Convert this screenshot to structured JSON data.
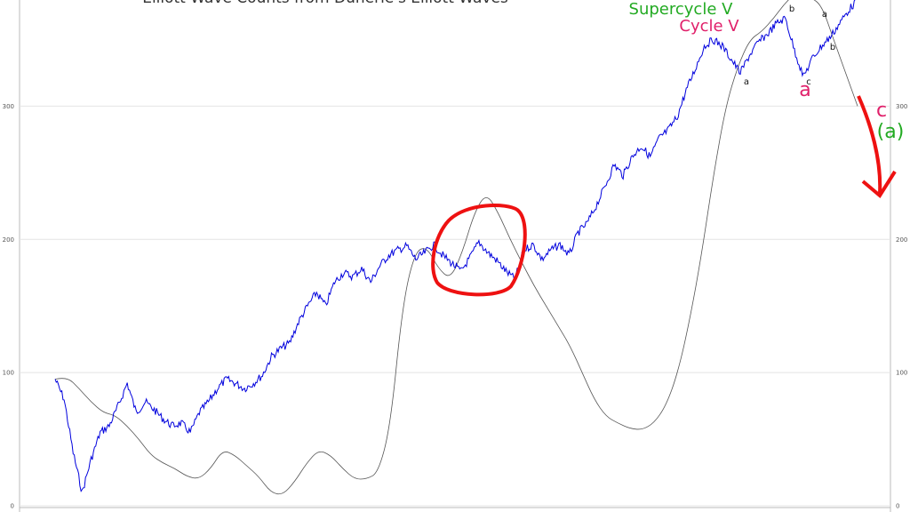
{
  "chart_data": {
    "type": "line",
    "title": "Elliott Wave Counts from Dunerie's Elliott Waves",
    "ylim": [
      0,
      380
    ],
    "y_ticks": [
      "0",
      "100",
      "200",
      "300"
    ],
    "grid": "horizontal",
    "colors": {
      "price": "#0000dd",
      "oscillator": "#555555",
      "highlight": "#ee1111",
      "green": "#22aa22",
      "pink": "#e0206a"
    },
    "series": [
      {
        "values": [
          95,
          80,
          40,
          10,
          35,
          55,
          60,
          75,
          92,
          70,
          78,
          72,
          65,
          60,
          62,
          55,
          70,
          78,
          88,
          95,
          92,
          88,
          92,
          98,
          112,
          118,
          122,
          138,
          150,
          160,
          150,
          168,
          175,
          172,
          178,
          168,
          180,
          188,
          192,
          195,
          185,
          190,
          196,
          188,
          182,
          176,
          186,
          198,
          190,
          184,
          176,
          170,
          192,
          196,
          185,
          192,
          196,
          188,
          205,
          212,
          225,
          240,
          256,
          248,
          262,
          270,
          262,
          276,
          282,
          292,
          312,
          328,
          345,
          350,
          345,
          335,
          325,
          338,
          348,
          354,
          362,
          366,
          342,
          322,
          336,
          345,
          352,
          362,
          372,
          380
        ]
      },
      {
        "values": [
          95,
          97,
          88,
          78,
          70,
          68,
          60,
          50,
          38,
          32,
          28,
          22,
          20,
          28,
          42,
          38,
          30,
          22,
          10,
          8,
          18,
          32,
          42,
          38,
          28,
          20,
          20,
          25,
          60,
          150,
          190,
          195,
          178,
          170,
          190,
          220,
          235,
          220,
          200,
          182,
          165,
          150,
          135,
          120,
          100,
          80,
          67,
          62,
          58,
          57,
          62,
          75,
          100,
          140,
          190,
          250,
          300,
          330,
          350,
          356,
          366,
          378,
          386,
          382,
          376,
          350,
          325,
          300
        ]
      }
    ],
    "annotations": {
      "supercycle": "Supercycle V",
      "cycle": "Cycle V",
      "a_big": "a",
      "c_big": "c",
      "a_paren": "(a)",
      "b1": "b",
      "a1": "a",
      "a2": "a",
      "b2": "b",
      "c_small": "c"
    }
  }
}
